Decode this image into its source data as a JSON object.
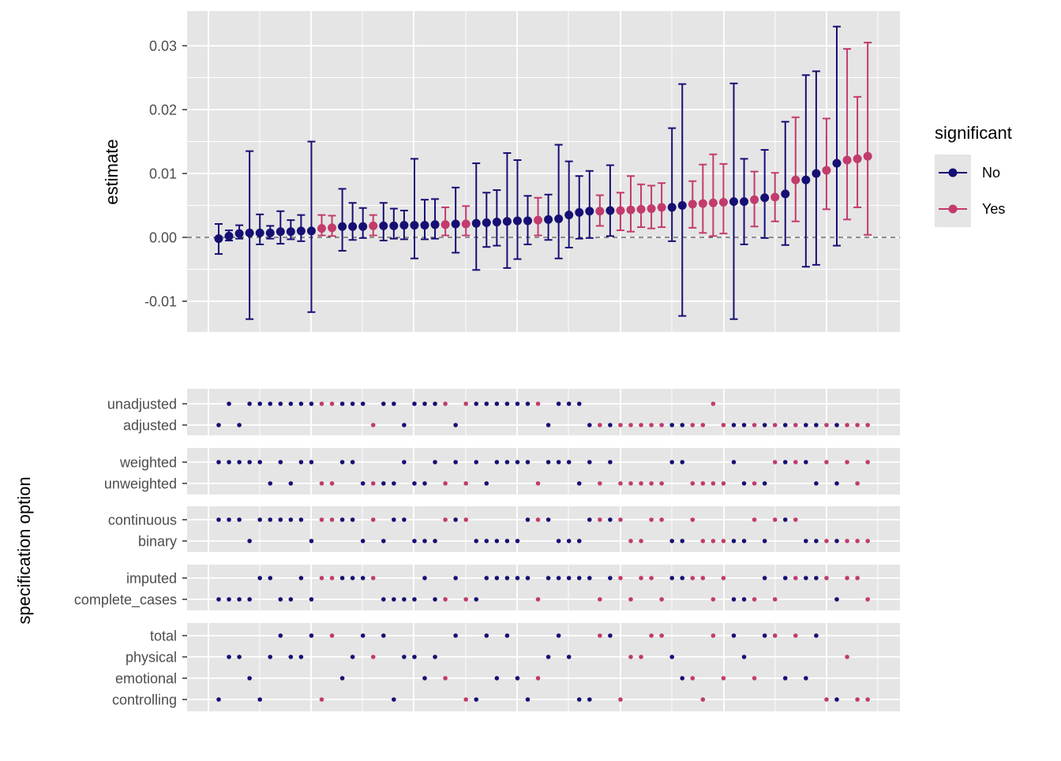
{
  "colors": {
    "no": "#160f74",
    "yes": "#c23b6c",
    "panel": "#e5e5e5",
    "grid": "#ffffff",
    "text": "#4d4d4d",
    "title": "#000000"
  },
  "chart_data": [
    {
      "type": "scatter",
      "subtype": "errorbar",
      "ylabel": "estimate",
      "ylim": [
        -0.015,
        0.035
      ],
      "yticks": [
        "0.03",
        "0.02",
        "0.01",
        "0.00",
        "-0.01"
      ],
      "ytick_values": [
        0.03,
        0.02,
        0.01,
        0.0,
        -0.01
      ],
      "reference_line": 0,
      "legend": {
        "title": "significant",
        "position": "right",
        "labels": [
          "No",
          "Yes"
        ]
      },
      "points": [
        {
          "est": -0.0002,
          "lo": -0.0026,
          "hi": 0.0021,
          "sig": "No"
        },
        {
          "est": 0.0002,
          "lo": -0.0005,
          "hi": 0.0011,
          "sig": "No"
        },
        {
          "est": 0.0006,
          "lo": -0.0002,
          "hi": 0.0019,
          "sig": "No"
        },
        {
          "est": 0.0007,
          "lo": -0.0128,
          "hi": 0.0135,
          "sig": "No"
        },
        {
          "est": 0.0007,
          "lo": -0.0011,
          "hi": 0.0036,
          "sig": "No"
        },
        {
          "est": 0.0007,
          "lo": -0.0002,
          "hi": 0.0018,
          "sig": "No"
        },
        {
          "est": 0.0009,
          "lo": -0.001,
          "hi": 0.0041,
          "sig": "No"
        },
        {
          "est": 0.0009,
          "lo": -0.0003,
          "hi": 0.0027,
          "sig": "No"
        },
        {
          "est": 0.001,
          "lo": -0.0006,
          "hi": 0.0035,
          "sig": "No"
        },
        {
          "est": 0.001,
          "lo": -0.0117,
          "hi": 0.015,
          "sig": "No"
        },
        {
          "est": 0.0014,
          "lo": 0.0003,
          "hi": 0.0035,
          "sig": "Yes"
        },
        {
          "est": 0.0015,
          "lo": 0.0002,
          "hi": 0.0034,
          "sig": "Yes"
        },
        {
          "est": 0.0017,
          "lo": -0.0021,
          "hi": 0.0076,
          "sig": "No"
        },
        {
          "est": 0.0017,
          "lo": -0.0004,
          "hi": 0.0054,
          "sig": "No"
        },
        {
          "est": 0.0017,
          "lo": -0.0001,
          "hi": 0.0046,
          "sig": "No"
        },
        {
          "est": 0.0018,
          "lo": 0.0003,
          "hi": 0.0035,
          "sig": "Yes"
        },
        {
          "est": 0.0018,
          "lo": -0.0005,
          "hi": 0.0054,
          "sig": "No"
        },
        {
          "est": 0.0018,
          "lo": -0.0002,
          "hi": 0.0045,
          "sig": "No"
        },
        {
          "est": 0.0019,
          "lo": -0.0003,
          "hi": 0.0042,
          "sig": "No"
        },
        {
          "est": 0.0019,
          "lo": -0.0033,
          "hi": 0.0123,
          "sig": "No"
        },
        {
          "est": 0.0019,
          "lo": -0.0003,
          "hi": 0.0059,
          "sig": "No"
        },
        {
          "est": 0.002,
          "lo": -0.0002,
          "hi": 0.006,
          "sig": "No"
        },
        {
          "est": 0.002,
          "lo": 0.0003,
          "hi": 0.0047,
          "sig": "Yes"
        },
        {
          "est": 0.0021,
          "lo": -0.0024,
          "hi": 0.0078,
          "sig": "No"
        },
        {
          "est": 0.0021,
          "lo": 0.0003,
          "hi": 0.0049,
          "sig": "Yes"
        },
        {
          "est": 0.0022,
          "lo": -0.0051,
          "hi": 0.0116,
          "sig": "No"
        },
        {
          "est": 0.0023,
          "lo": -0.0015,
          "hi": 0.007,
          "sig": "No"
        },
        {
          "est": 0.0024,
          "lo": -0.0013,
          "hi": 0.0074,
          "sig": "No"
        },
        {
          "est": 0.0025,
          "lo": -0.0048,
          "hi": 0.0132,
          "sig": "No"
        },
        {
          "est": 0.0026,
          "lo": -0.0034,
          "hi": 0.0121,
          "sig": "No"
        },
        {
          "est": 0.0026,
          "lo": -0.0011,
          "hi": 0.0065,
          "sig": "No"
        },
        {
          "est": 0.0027,
          "lo": 0.0003,
          "hi": 0.0062,
          "sig": "Yes"
        },
        {
          "est": 0.0028,
          "lo": -0.0004,
          "hi": 0.0067,
          "sig": "No"
        },
        {
          "est": 0.0029,
          "lo": -0.0033,
          "hi": 0.0145,
          "sig": "No"
        },
        {
          "est": 0.0035,
          "lo": -0.0016,
          "hi": 0.0119,
          "sig": "No"
        },
        {
          "est": 0.0039,
          "lo": -0.0002,
          "hi": 0.0096,
          "sig": "No"
        },
        {
          "est": 0.0041,
          "lo": -0.0001,
          "hi": 0.0104,
          "sig": "No"
        },
        {
          "est": 0.0041,
          "lo": 0.0018,
          "hi": 0.0066,
          "sig": "Yes"
        },
        {
          "est": 0.0042,
          "lo": 0.0002,
          "hi": 0.0113,
          "sig": "No"
        },
        {
          "est": 0.0042,
          "lo": 0.0011,
          "hi": 0.007,
          "sig": "Yes"
        },
        {
          "est": 0.0043,
          "lo": 0.0009,
          "hi": 0.0096,
          "sig": "Yes"
        },
        {
          "est": 0.0044,
          "lo": 0.0016,
          "hi": 0.0083,
          "sig": "Yes"
        },
        {
          "est": 0.0045,
          "lo": 0.0014,
          "hi": 0.0081,
          "sig": "Yes"
        },
        {
          "est": 0.0047,
          "lo": 0.0016,
          "hi": 0.0085,
          "sig": "Yes"
        },
        {
          "est": 0.0047,
          "lo": -0.0006,
          "hi": 0.0171,
          "sig": "No"
        },
        {
          "est": 0.005,
          "lo": -0.0123,
          "hi": 0.024,
          "sig": "No"
        },
        {
          "est": 0.0052,
          "lo": 0.0015,
          "hi": 0.0088,
          "sig": "Yes"
        },
        {
          "est": 0.0053,
          "lo": 0.0007,
          "hi": 0.0114,
          "sig": "Yes"
        },
        {
          "est": 0.0054,
          "lo": 0.0002,
          "hi": 0.013,
          "sig": "Yes"
        },
        {
          "est": 0.0055,
          "lo": 0.0006,
          "hi": 0.0115,
          "sig": "Yes"
        },
        {
          "est": 0.0056,
          "lo": -0.0128,
          "hi": 0.0241,
          "sig": "No"
        },
        {
          "est": 0.0056,
          "lo": -0.0011,
          "hi": 0.0123,
          "sig": "No"
        },
        {
          "est": 0.0059,
          "lo": 0.0017,
          "hi": 0.0103,
          "sig": "Yes"
        },
        {
          "est": 0.0062,
          "lo": -0.0001,
          "hi": 0.0137,
          "sig": "No"
        },
        {
          "est": 0.0063,
          "lo": 0.0025,
          "hi": 0.0101,
          "sig": "Yes"
        },
        {
          "est": 0.0068,
          "lo": -0.0012,
          "hi": 0.0181,
          "sig": "No"
        },
        {
          "est": 0.009,
          "lo": 0.0025,
          "hi": 0.0188,
          "sig": "Yes"
        },
        {
          "est": 0.009,
          "lo": -0.0046,
          "hi": 0.0254,
          "sig": "No"
        },
        {
          "est": 0.01,
          "lo": -0.0043,
          "hi": 0.026,
          "sig": "No"
        },
        {
          "est": 0.0105,
          "lo": 0.0044,
          "hi": 0.0186,
          "sig": "Yes"
        },
        {
          "est": 0.0116,
          "lo": -0.0013,
          "hi": 0.033,
          "sig": "No"
        },
        {
          "est": 0.0121,
          "lo": 0.0028,
          "hi": 0.0295,
          "sig": "Yes"
        },
        {
          "est": 0.0123,
          "lo": 0.0047,
          "hi": 0.022,
          "sig": "Yes"
        },
        {
          "est": 0.0127,
          "lo": 0.0004,
          "hi": 0.0305,
          "sig": "Yes"
        }
      ]
    },
    {
      "type": "scatter",
      "subtype": "specification-matrix",
      "ylabel": "specification option",
      "panels": [
        {
          "labels": [
            "unadjusted",
            "adjusted"
          ],
          "indices": [
            1,
            0,
            1,
            0,
            0,
            0,
            0,
            0,
            0,
            0,
            0,
            0,
            0,
            0,
            0,
            1,
            0,
            0,
            1,
            0,
            0,
            0,
            0,
            1,
            0,
            0,
            0,
            0,
            0,
            0,
            0,
            0,
            1,
            0,
            0,
            0,
            1,
            1,
            1,
            1,
            1,
            1,
            1,
            1,
            1,
            1,
            1,
            1,
            0,
            1,
            1,
            1,
            1,
            1,
            1,
            1,
            1,
            1,
            1,
            1,
            1,
            1,
            1,
            1
          ]
        },
        {
          "labels": [
            "weighted",
            "unweighted"
          ],
          "indices": [
            0,
            0,
            0,
            0,
            0,
            1,
            0,
            1,
            0,
            0,
            1,
            1,
            0,
            0,
            1,
            1,
            1,
            1,
            0,
            1,
            1,
            0,
            1,
            0,
            1,
            0,
            1,
            0,
            0,
            0,
            0,
            1,
            0,
            0,
            0,
            1,
            0,
            1,
            0,
            1,
            1,
            1,
            1,
            1,
            0,
            0,
            1,
            1,
            1,
            1,
            0,
            1,
            1,
            1,
            0,
            0,
            0,
            0,
            1,
            0,
            1,
            0,
            1,
            0
          ]
        },
        {
          "labels": [
            "continuous",
            "binary"
          ],
          "indices": [
            0,
            0,
            0,
            1,
            0,
            0,
            0,
            0,
            0,
            1,
            0,
            0,
            0,
            0,
            1,
            0,
            1,
            0,
            0,
            1,
            1,
            1,
            0,
            0,
            0,
            1,
            1,
            1,
            1,
            1,
            0,
            0,
            0,
            1,
            1,
            1,
            0,
            0,
            0,
            0,
            1,
            1,
            0,
            0,
            1,
            1,
            0,
            1,
            1,
            1,
            1,
            1,
            0,
            1,
            0,
            0,
            0,
            1,
            1,
            1,
            1,
            1,
            1,
            1
          ]
        },
        {
          "labels": [
            "imputed",
            "complete_cases"
          ],
          "indices": [
            1,
            1,
            1,
            1,
            0,
            0,
            1,
            1,
            0,
            1,
            0,
            0,
            0,
            0,
            0,
            0,
            1,
            1,
            1,
            1,
            0,
            1,
            1,
            0,
            1,
            1,
            0,
            0,
            0,
            0,
            0,
            1,
            0,
            0,
            0,
            0,
            0,
            1,
            0,
            0,
            1,
            0,
            0,
            1,
            0,
            0,
            0,
            0,
            1,
            0,
            1,
            1,
            1,
            0,
            1,
            0,
            0,
            0,
            0,
            0,
            1,
            0,
            0,
            1
          ]
        },
        {
          "labels": [
            "total",
            "physical",
            "emotional",
            "controlling"
          ],
          "indices": [
            3,
            1,
            1,
            2,
            3,
            1,
            0,
            1,
            1,
            0,
            3,
            0,
            2,
            1,
            0,
            1,
            0,
            3,
            1,
            1,
            2,
            1,
            2,
            0,
            3,
            3,
            0,
            2,
            0,
            2,
            3,
            2,
            1,
            0,
            1,
            3,
            3,
            0,
            0,
            3,
            1,
            1,
            0,
            0,
            1,
            2,
            2,
            3,
            0,
            2,
            0,
            1,
            2,
            0,
            0,
            2,
            0,
            2,
            0,
            3,
            3,
            1,
            3,
            3
          ]
        }
      ]
    }
  ]
}
